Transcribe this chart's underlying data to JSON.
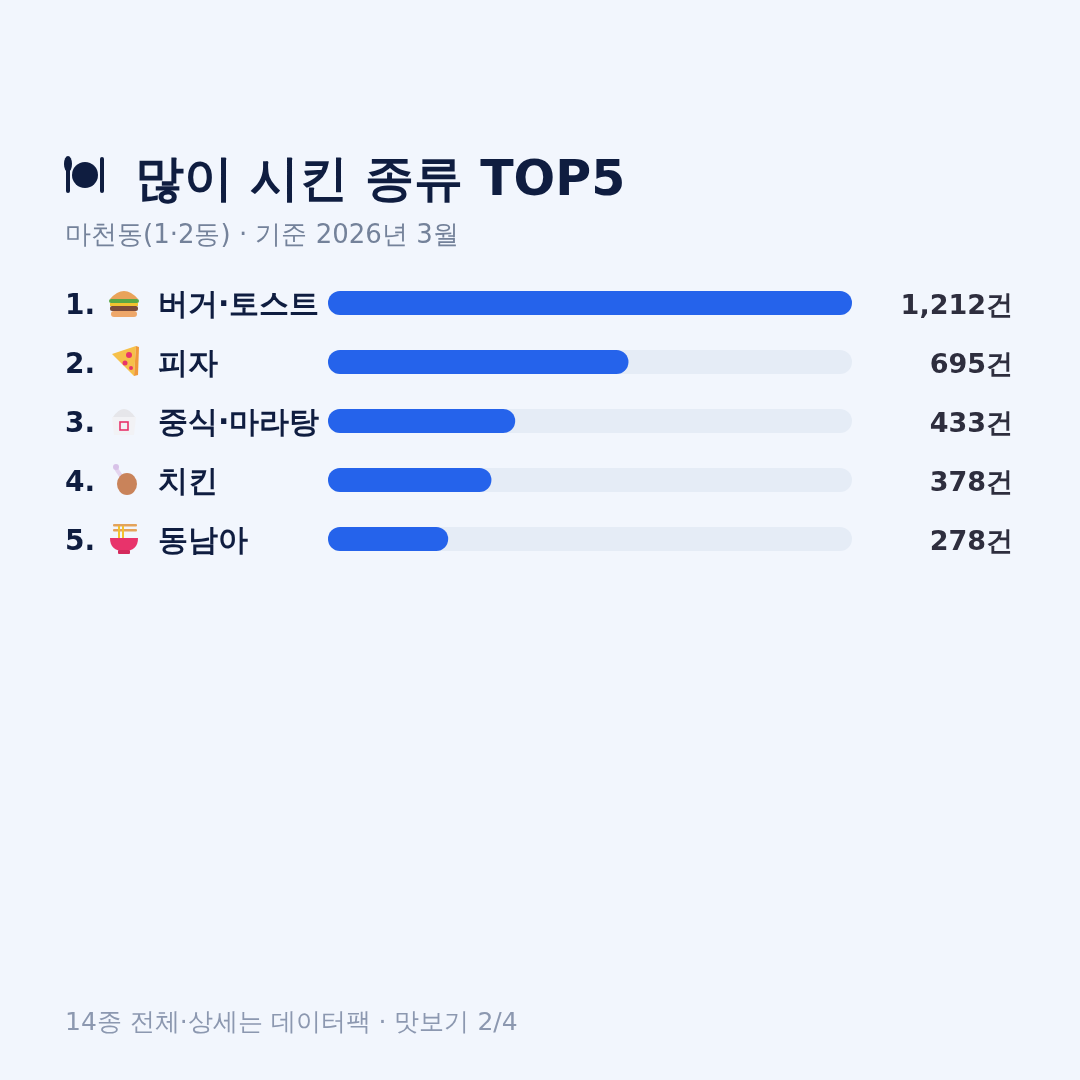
{
  "chart_data": {
    "type": "bar",
    "orientation": "horizontal",
    "title": "많이 시킨 종류 TOP5",
    "subtitle": "마천동(1·2동) · 기준 2026년 3월",
    "categories": [
      "버거·토스트",
      "피자",
      "중식·마라탕",
      "치킨",
      "동남아"
    ],
    "values": [
      1212,
      695,
      433,
      378,
      278
    ],
    "value_labels": [
      "1,212건",
      "695건",
      "433건",
      "378건",
      "278건"
    ],
    "color": "#2563eb",
    "annotations": [
      "1.",
      "2.",
      "3.",
      "4.",
      "5.",
      "14종 전체·상세는 데이터팩 · 맛보기 2/4"
    ]
  }
}
